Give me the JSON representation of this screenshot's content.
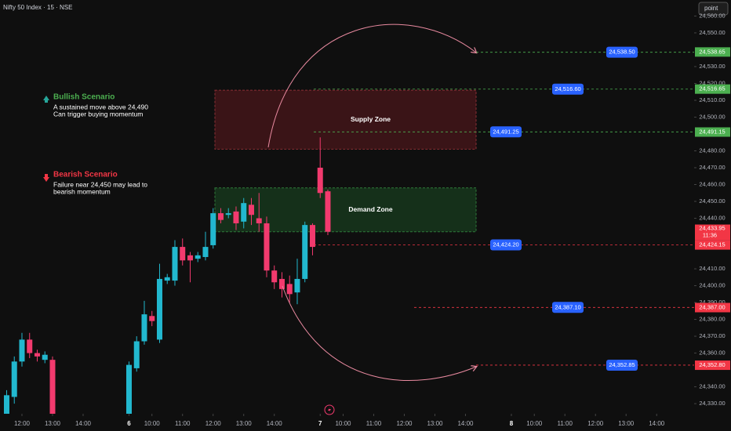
{
  "chart_data": {
    "type": "candlestick",
    "title": "Nifty 50 Index · 15 · NSE",
    "button": "point",
    "up_color": "#22b8cf",
    "down_color": "#f23a6e",
    "x": [
      0,
      1,
      2,
      3,
      4,
      5,
      6,
      7,
      16,
      17,
      18,
      19,
      20,
      21,
      22,
      23,
      24,
      25,
      26,
      27,
      28,
      29,
      30,
      31,
      32,
      33,
      34,
      35,
      36,
      37,
      38,
      39,
      40,
      41,
      42
    ],
    "open": [
      24323,
      24334,
      24355,
      24368,
      24360,
      24356,
      24356,
      24323,
      24320,
      24351,
      24367,
      24382,
      24368,
      24403,
      24403,
      24423,
      24418,
      24416,
      24417,
      24424,
      24443,
      24442,
      24444,
      24438,
      24448,
      24440,
      24437,
      24409,
      24404,
      24401,
      24396,
      24404,
      24436,
      24470,
      24456
    ],
    "high": [
      24338,
      24358,
      24372,
      24372,
      24362,
      24361,
      24358,
      24324,
      24355,
      24370,
      24391,
      24385,
      24413,
      24407,
      24427,
      24428,
      24420,
      24420,
      24432,
      24446,
      24446,
      24446,
      24447,
      24452,
      24452,
      24455,
      24441,
      24412,
      24408,
      24406,
      24416,
      24438,
      24437,
      24488,
      24457
    ],
    "low": [
      24320,
      24330,
      24352,
      24357,
      24355,
      24354,
      24318,
      24318,
      24318,
      24349,
      24365,
      24376,
      24366,
      24401,
      24400,
      24412,
      24402,
      24414,
      24415,
      24422,
      24437,
      24440,
      24433,
      24434,
      24436,
      24432,
      24405,
      24398,
      24393,
      24390,
      24389,
      24402,
      24418,
      24452,
      24430
    ],
    "close": [
      24335,
      24355,
      24368,
      24360,
      24358,
      24359,
      24322,
      24322,
      24353,
      24367,
      24383,
      24379,
      24404,
      24405,
      24423,
      24415,
      24415,
      24418,
      24423,
      24443,
      24439,
      24443,
      24437,
      24449,
      24442,
      24437,
      24409,
      24402,
      24398,
      24395,
      24404,
      24436,
      24423,
      24455,
      24432
    ],
    "xlim": [
      -0.87,
      89.9
    ],
    "xticks": [
      {
        "value": 2,
        "label": "12:00"
      },
      {
        "value": 6,
        "label": "13:00"
      },
      {
        "value": 10,
        "label": "14:00"
      },
      {
        "value": 16,
        "label": "6"
      },
      {
        "value": 19,
        "label": "10:00"
      },
      {
        "value": 23,
        "label": "11:00"
      },
      {
        "value": 27,
        "label": "12:00"
      },
      {
        "value": 31,
        "label": "13:00"
      },
      {
        "value": 35,
        "label": "14:00"
      },
      {
        "value": 41,
        "label": "7"
      },
      {
        "value": 44,
        "label": "10:00"
      },
      {
        "value": 48,
        "label": "11:00"
      },
      {
        "value": 52,
        "label": "12:00"
      },
      {
        "value": 56,
        "label": "13:00"
      },
      {
        "value": 60,
        "label": "14:00"
      },
      {
        "value": 66,
        "label": "8"
      },
      {
        "value": 69,
        "label": "10:00"
      },
      {
        "value": 73,
        "label": "11:00"
      },
      {
        "value": 77,
        "label": "12:00"
      },
      {
        "value": 81,
        "label": "13:00"
      },
      {
        "value": 85,
        "label": "14:00"
      }
    ],
    "day_ticks": [
      "6",
      "7",
      "8"
    ],
    "ylim": [
      24324,
      24569.5
    ],
    "yticks": [
      {
        "value": 24330,
        "label": "24,330.00"
      },
      {
        "value": 24340,
        "label": "24,340.00"
      },
      {
        "value": 24360,
        "label": "24,360.00"
      },
      {
        "value": 24370,
        "label": "24,370.00"
      },
      {
        "value": 24380,
        "label": "24,380.00"
      },
      {
        "value": 24390,
        "label": "24,390.00"
      },
      {
        "value": 24400,
        "label": "24,400.00"
      },
      {
        "value": 24410,
        "label": "24,410.00"
      },
      {
        "value": 24440,
        "label": "24,440.00"
      },
      {
        "value": 24450,
        "label": "24,450.00"
      },
      {
        "value": 24460,
        "label": "24,460.00"
      },
      {
        "value": 24470,
        "label": "24,470.00"
      },
      {
        "value": 24480,
        "label": "24,480.00"
      },
      {
        "value": 24500,
        "label": "24,500.00"
      },
      {
        "value": 24510,
        "label": "24,510.00"
      },
      {
        "value": 24520,
        "label": "24,520.00"
      },
      {
        "value": 24530,
        "label": "24,530.00"
      },
      {
        "value": 24550,
        "label": "24,550.00"
      },
      {
        "value": 24560,
        "label": "24,560.00"
      }
    ],
    "grid": false,
    "zones": [
      {
        "label": "Supply Zone",
        "top": 24516,
        "bottom": 24481,
        "fill": "#3a1417",
        "stroke": "#8a2f35"
      },
      {
        "label": "Demand Zone",
        "top": 24458,
        "bottom": 24432,
        "fill": "#15301a",
        "stroke": "#2f7a3a"
      }
    ],
    "levels": [
      {
        "tag": {
          "value": 24538.5,
          "label": "24,538.50"
        },
        "axis_tag": {
          "value": 24538.65,
          "label": "24,538.65"
        },
        "color": "#4caf50"
      },
      {
        "tag": {
          "value": 24516.6,
          "label": "24,516.60"
        },
        "axis_tag": {
          "value": 24516.65,
          "label": "24,516.65"
        },
        "color": "#4caf50"
      },
      {
        "tag": {
          "value": 24491.25,
          "label": "24,491.25"
        },
        "axis_tag": {
          "value": 24491.15,
          "label": "24,491.15"
        },
        "color": "#4caf50"
      },
      {
        "tag": {
          "value": 24424.2,
          "label": "24,424.20"
        },
        "axis_tag": {
          "value": 24424.15,
          "label": "24,424.15"
        },
        "color": "#f23645"
      },
      {
        "tag": {
          "value": 24387.1,
          "label": "24,387.10"
        },
        "axis_tag": {
          "value": 24387,
          "label": "24,387.00"
        },
        "color": "#f23645"
      },
      {
        "tag": {
          "value": 24352.85,
          "label": "24,352.85"
        },
        "axis_tag": {
          "value": 24352.8,
          "label": "24,352.80"
        },
        "color": "#f23645"
      }
    ],
    "tag_color": "#2962ff",
    "last_price": {
      "value": 24433.95,
      "label": "24,433.95"
    },
    "countdown": "11:36",
    "scenarios": [
      {
        "title": "Bullish Scenario",
        "lines": [
          "A sustained move above 24,490",
          "Can trigger buying momentum"
        ],
        "color": "#4caf50"
      },
      {
        "title": "Bearish Scenario",
        "lines": [
          "Failure near 24,450 may lead to",
          "bearish momentum"
        ],
        "color": "#f23645"
      }
    ]
  }
}
